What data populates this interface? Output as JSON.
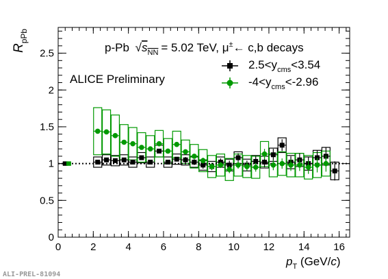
{
  "chart_data": {
    "type": "scatter",
    "title_parts": {
      "collision": "p-Pb",
      "sqrt_symbol": "√",
      "s_nn": "s",
      "s_nn_sub": "NN",
      "energy": "= 5.02 TeV, μ",
      "mu_sup": "±",
      "decay": "← c,b decays"
    },
    "preliminary_label": "ALICE Preliminary",
    "ylabel": {
      "main": "R",
      "sub": "pPb"
    },
    "xlabel": {
      "main": "p",
      "sub": "T",
      "unit_open": " (GeV/",
      "unit_c": "c",
      "unit_close": ")"
    },
    "watermark": "ALI-PREL-81094",
    "xlim": [
      0,
      16.6
    ],
    "ylim": [
      0,
      2.85
    ],
    "x_ticks": [
      0,
      2,
      4,
      6,
      8,
      10,
      12,
      14,
      16
    ],
    "y_ticks": [
      0,
      0.5,
      1,
      1.5,
      2,
      2.5
    ],
    "x_tick_labels": [
      "0",
      "2",
      "4",
      "6",
      "8",
      "10",
      "12",
      "14",
      "16"
    ],
    "y_tick_labels": [
      "0",
      "0.5",
      "1",
      "1.5",
      "2",
      "2.5"
    ],
    "reference_line_y": 1,
    "normalization_boxes": [
      {
        "x": 0.4,
        "half_height": 0.03,
        "color": "#000000"
      },
      {
        "x": 0.6,
        "half_height": 0.03,
        "color": "#009900"
      }
    ],
    "series": [
      {
        "name_parts": {
          "pre": "2.5<y",
          "sub": "cms",
          "post": "<3.54"
        },
        "color": "#000000",
        "marker": "square",
        "points": [
          {
            "x": 2.25,
            "xerr": 0.25,
            "y": 1.02,
            "stat": 0.02,
            "sys": 0.07
          },
          {
            "x": 2.75,
            "xerr": 0.25,
            "y": 1.05,
            "stat": 0.02,
            "sys": 0.07
          },
          {
            "x": 3.25,
            "xerr": 0.25,
            "y": 1.04,
            "stat": 0.02,
            "sys": 0.07
          },
          {
            "x": 3.75,
            "xerr": 0.25,
            "y": 1.05,
            "stat": 0.02,
            "sys": 0.07
          },
          {
            "x": 4.25,
            "xerr": 0.25,
            "y": 1.02,
            "stat": 0.02,
            "sys": 0.07
          },
          {
            "x": 4.75,
            "xerr": 0.25,
            "y": 1.08,
            "stat": 0.02,
            "sys": 0.07
          },
          {
            "x": 5.25,
            "xerr": 0.25,
            "y": 1.02,
            "stat": 0.03,
            "sys": 0.07
          },
          {
            "x": 5.75,
            "xerr": 0.25,
            "y": 1.17,
            "stat": 0.03,
            "sys": 0.08
          },
          {
            "x": 6.25,
            "xerr": 0.25,
            "y": 1.02,
            "stat": 0.03,
            "sys": 0.07
          },
          {
            "x": 6.75,
            "xerr": 0.25,
            "y": 1.06,
            "stat": 0.03,
            "sys": 0.07
          },
          {
            "x": 7.25,
            "xerr": 0.25,
            "y": 1.05,
            "stat": 0.04,
            "sys": 0.07
          },
          {
            "x": 7.75,
            "xerr": 0.25,
            "y": 1.02,
            "stat": 0.04,
            "sys": 0.07
          },
          {
            "x": 8.25,
            "xerr": 0.25,
            "y": 0.98,
            "stat": 0.05,
            "sys": 0.07
          },
          {
            "x": 8.75,
            "xerr": 0.25,
            "y": 0.96,
            "stat": 0.05,
            "sys": 0.07
          },
          {
            "x": 9.25,
            "xerr": 0.25,
            "y": 1.02,
            "stat": 0.05,
            "sys": 0.07
          },
          {
            "x": 9.75,
            "xerr": 0.25,
            "y": 0.98,
            "stat": 0.06,
            "sys": 0.08
          },
          {
            "x": 10.25,
            "xerr": 0.25,
            "y": 1.08,
            "stat": 0.06,
            "sys": 0.08
          },
          {
            "x": 10.75,
            "xerr": 0.25,
            "y": 0.98,
            "stat": 0.06,
            "sys": 0.08
          },
          {
            "x": 11.25,
            "xerr": 0.25,
            "y": 1.03,
            "stat": 0.07,
            "sys": 0.08
          },
          {
            "x": 11.75,
            "xerr": 0.25,
            "y": 1.02,
            "stat": 0.07,
            "sys": 0.08
          },
          {
            "x": 12.25,
            "xerr": 0.25,
            "y": 1.12,
            "stat": 0.08,
            "sys": 0.09
          },
          {
            "x": 12.75,
            "xerr": 0.25,
            "y": 1.25,
            "stat": 0.08,
            "sys": 0.1
          },
          {
            "x": 13.25,
            "xerr": 0.25,
            "y": 1.02,
            "stat": 0.08,
            "sys": 0.09
          },
          {
            "x": 13.75,
            "xerr": 0.25,
            "y": 1.05,
            "stat": 0.09,
            "sys": 0.09
          },
          {
            "x": 14.25,
            "xerr": 0.25,
            "y": 1.0,
            "stat": 0.09,
            "sys": 0.09
          },
          {
            "x": 14.75,
            "xerr": 0.25,
            "y": 1.08,
            "stat": 0.1,
            "sys": 0.1
          },
          {
            "x": 15.25,
            "xerr": 0.25,
            "y": 1.1,
            "stat": 0.12,
            "sys": 0.12
          },
          {
            "x": 15.75,
            "xerr": 0.25,
            "y": 0.9,
            "stat": 0.13,
            "sys": 0.12
          }
        ]
      },
      {
        "name_parts": {
          "pre": "-4<y",
          "sub": "cms",
          "post": "<-2.96"
        },
        "color": "#009900",
        "marker": "circle",
        "points": [
          {
            "x": 2.25,
            "xerr": 0.25,
            "y": 1.44,
            "stat": 0.02,
            "sys": 0.32
          },
          {
            "x": 2.75,
            "xerr": 0.25,
            "y": 1.43,
            "stat": 0.02,
            "sys": 0.3
          },
          {
            "x": 3.25,
            "xerr": 0.25,
            "y": 1.38,
            "stat": 0.02,
            "sys": 0.28
          },
          {
            "x": 3.75,
            "xerr": 0.25,
            "y": 1.29,
            "stat": 0.02,
            "sys": 0.24
          },
          {
            "x": 4.25,
            "xerr": 0.25,
            "y": 1.27,
            "stat": 0.02,
            "sys": 0.22
          },
          {
            "x": 4.75,
            "xerr": 0.25,
            "y": 1.22,
            "stat": 0.02,
            "sys": 0.2
          },
          {
            "x": 5.25,
            "xerr": 0.25,
            "y": 1.2,
            "stat": 0.02,
            "sys": 0.18
          },
          {
            "x": 5.75,
            "xerr": 0.25,
            "y": 1.27,
            "stat": 0.02,
            "sys": 0.18
          },
          {
            "x": 6.25,
            "xerr": 0.25,
            "y": 1.17,
            "stat": 0.03,
            "sys": 0.17
          },
          {
            "x": 6.75,
            "xerr": 0.25,
            "y": 1.26,
            "stat": 0.03,
            "sys": 0.18
          },
          {
            "x": 7.25,
            "xerr": 0.25,
            "y": 1.16,
            "stat": 0.03,
            "sys": 0.16
          },
          {
            "x": 7.75,
            "xerr": 0.25,
            "y": 1.1,
            "stat": 0.03,
            "sys": 0.16
          },
          {
            "x": 8.25,
            "xerr": 0.25,
            "y": 1.04,
            "stat": 0.04,
            "sys": 0.15
          },
          {
            "x": 8.75,
            "xerr": 0.25,
            "y": 0.96,
            "stat": 0.04,
            "sys": 0.15
          },
          {
            "x": 9.25,
            "xerr": 0.25,
            "y": 0.98,
            "stat": 0.04,
            "sys": 0.15
          },
          {
            "x": 9.75,
            "xerr": 0.25,
            "y": 0.92,
            "stat": 0.05,
            "sys": 0.15
          },
          {
            "x": 10.25,
            "xerr": 0.25,
            "y": 0.98,
            "stat": 0.05,
            "sys": 0.15
          },
          {
            "x": 10.75,
            "xerr": 0.25,
            "y": 0.96,
            "stat": 0.06,
            "sys": 0.15
          },
          {
            "x": 11.25,
            "xerr": 0.25,
            "y": 0.95,
            "stat": 0.06,
            "sys": 0.15
          },
          {
            "x": 11.75,
            "xerr": 0.25,
            "y": 1.13,
            "stat": 0.07,
            "sys": 0.17
          },
          {
            "x": 12.25,
            "xerr": 0.25,
            "y": 0.98,
            "stat": 0.07,
            "sys": 0.16
          },
          {
            "x": 12.75,
            "xerr": 0.25,
            "y": 1.0,
            "stat": 0.07,
            "sys": 0.16
          },
          {
            "x": 13.25,
            "xerr": 0.25,
            "y": 0.98,
            "stat": 0.08,
            "sys": 0.16
          },
          {
            "x": 13.75,
            "xerr": 0.25,
            "y": 0.98,
            "stat": 0.08,
            "sys": 0.16
          },
          {
            "x": 14.25,
            "xerr": 0.25,
            "y": 0.95,
            "stat": 0.09,
            "sys": 0.16
          },
          {
            "x": 14.75,
            "xerr": 0.25,
            "y": 0.98,
            "stat": 0.1,
            "sys": 0.17
          },
          {
            "x": 15.25,
            "xerr": 0.25,
            "y": 1.0,
            "stat": 0.11,
            "sys": 0.17
          }
        ]
      }
    ]
  }
}
